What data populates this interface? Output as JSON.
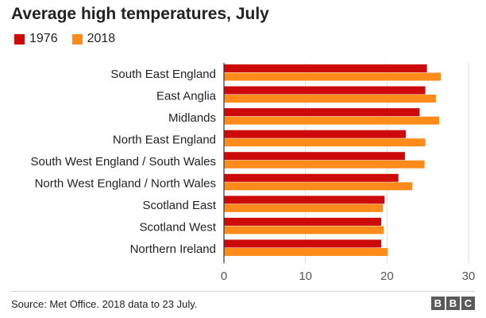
{
  "chart_data": {
    "type": "bar",
    "orientation": "horizontal",
    "title": "Average high temperatures, July",
    "categories": [
      "South East England",
      "East Anglia",
      "Midlands",
      "North East England",
      "South West England / South Wales",
      "North West England / North Wales",
      "Scotland East",
      "Scotland West",
      "Northern Ireland"
    ],
    "series": [
      {
        "name": "1976",
        "color": "#cc0a0a",
        "values": [
          24.9,
          24.7,
          24.0,
          22.3,
          22.2,
          21.4,
          19.7,
          19.3,
          19.3
        ]
      },
      {
        "name": "2018",
        "color": "#ff8c1a",
        "values": [
          26.6,
          26.0,
          26.4,
          24.7,
          24.6,
          23.1,
          19.5,
          19.6,
          20.1
        ]
      }
    ],
    "xlim": [
      0,
      30
    ],
    "xticks": [
      "0",
      "10",
      "20",
      "30"
    ],
    "grid": "vertical",
    "legend": "top-left"
  },
  "footer": {
    "source": "Source: Met Office. 2018 data to 23 July.",
    "logo_letters": [
      "B",
      "B",
      "C"
    ]
  }
}
